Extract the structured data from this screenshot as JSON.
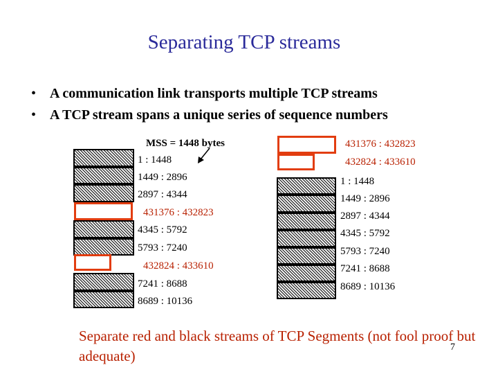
{
  "title": "Separating TCP streams",
  "bullets": [
    "A communication link transports multiple TCP streams",
    "A TCP stream spans a unique series of sequence numbers"
  ],
  "bullet_glyph": "•",
  "left_stack": {
    "mss_label": "MSS = 1448 bytes",
    "labels": [
      "1 : 1448",
      "1449 : 2896",
      "2897 : 4344",
      "431376 : 432823",
      "4345 : 5792",
      "5793 : 7240",
      "432824 : 433610",
      "7241 : 8688",
      "8689 : 10136"
    ],
    "label_streams": [
      "black",
      "black",
      "black",
      "red",
      "black",
      "black",
      "red",
      "black",
      "black"
    ]
  },
  "right_red": {
    "labels": [
      "431376 : 432823",
      "432824 : 433610"
    ]
  },
  "right_black": {
    "labels": [
      "1 : 1448",
      "1449 : 2896",
      "2897 : 4344",
      "4345 : 5792",
      "5793 : 7240",
      "7241 : 8688",
      "8689 : 10136"
    ]
  },
  "footer": "Separate red and black streams of TCP Segments (not fool proof but adequate)",
  "page_number": "7",
  "colors": {
    "title": "#2a2a9a",
    "red_stream": "#e23d10",
    "red_text": "#b82000",
    "black_stream": "#000000"
  }
}
